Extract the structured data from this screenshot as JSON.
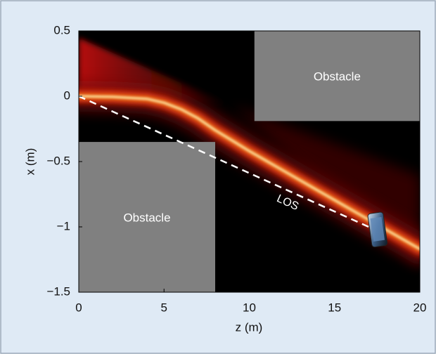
{
  "chart_data": {
    "type": "beam",
    "xlabel": "z (m)",
    "ylabel": "x (m)",
    "xlim": [
      0,
      20
    ],
    "ylim": [
      -1.5,
      0.5
    ],
    "xticks": [
      0,
      5,
      10,
      15,
      20
    ],
    "yticks": [
      0.5,
      0,
      {
        "value": -0.5,
        "label": "−0.5"
      },
      {
        "value": -1,
        "label": "−1"
      },
      {
        "value": -1.5,
        "label": "−1.5"
      }
    ],
    "beam": {
      "z": [
        0,
        2,
        4,
        5,
        6,
        7,
        8,
        9,
        10,
        12,
        14,
        16,
        18,
        20
      ],
      "x": [
        0,
        -0.005,
        -0.02,
        -0.05,
        -0.1,
        -0.17,
        -0.26,
        -0.34,
        -0.42,
        -0.57,
        -0.72,
        -0.87,
        -1.02,
        -1.17
      ]
    },
    "obstacles": [
      {
        "label": "Obstacle",
        "z": [
          10.3,
          20
        ],
        "x": [
          -0.19,
          0.5
        ]
      },
      {
        "label": "Obstacle",
        "z": [
          0,
          8
        ],
        "x": [
          -1.5,
          -0.35
        ]
      }
    ],
    "los": {
      "label": "LOS",
      "z": [
        0,
        17
      ],
      "x": [
        0,
        -1
      ]
    }
  }
}
